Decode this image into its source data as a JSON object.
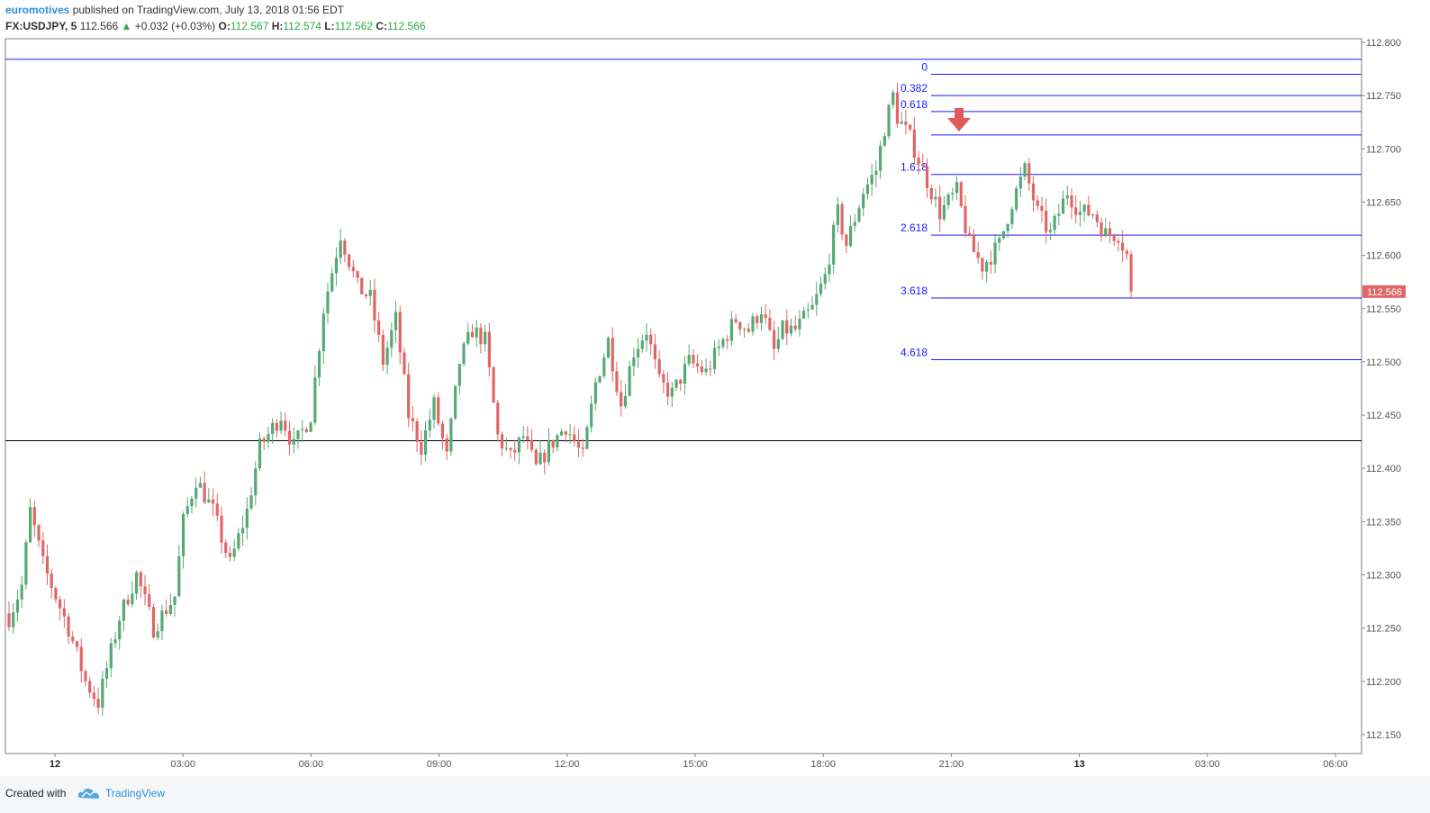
{
  "header": {
    "author": "euromotives",
    "published": "published on TradingView.com, July 13, 2018 01:56 EDT",
    "symbol": "FX:USDJPY, 5",
    "last": "112.566",
    "change": "+0.032 (+0.03%)",
    "o_label": "O:",
    "o_value": "112.567",
    "h_label": "H:",
    "h_value": "112.574",
    "l_label": "L:",
    "l_value": "112.562",
    "c_label": "C:",
    "c_value": "112.566"
  },
  "footer": {
    "created_with": "Created with",
    "brand": "TradingView"
  },
  "colors": {
    "up": "#55a974",
    "down": "#e06666",
    "fib": "#1a1aff",
    "axis": "#555555",
    "price_tag": "#e06666"
  },
  "chart_data": {
    "type": "candlestick",
    "title": "",
    "ylim": [
      112.135,
      112.81
    ],
    "y_ticks": [
      112.15,
      112.2,
      112.25,
      112.3,
      112.35,
      112.4,
      112.45,
      112.5,
      112.55,
      112.6,
      112.65,
      112.7,
      112.75,
      112.8
    ],
    "y_tick_labels": [
      "112.150",
      "112.200",
      "112.250",
      "112.300",
      "112.350",
      "112.400",
      "112.450",
      "112.500",
      "112.550",
      "112.600",
      "112.650",
      "112.700",
      "112.750",
      "112.800"
    ],
    "x_ticks": [
      "12",
      "03:00",
      "06:00",
      "09:00",
      "12:00",
      "15:00",
      "18:00",
      "21:00",
      "13",
      "03:00",
      "06:00"
    ],
    "x_bold_ticks": [
      "12",
      "13"
    ],
    "current_price_label": "112.566",
    "current_price": 112.566,
    "horizontal_lines": [
      {
        "price": 112.784,
        "color": "#1a1aff"
      },
      {
        "price": 112.426,
        "color": "#000000"
      }
    ],
    "fib_levels": [
      {
        "label": "0",
        "price": 112.77
      },
      {
        "label": "0.382",
        "price": 112.75
      },
      {
        "label": "0.618",
        "price": 112.735
      },
      {
        "label": "",
        "price": 112.713
      },
      {
        "label": "1.618",
        "price": 112.676
      },
      {
        "label": "2.618",
        "price": 112.619
      },
      {
        "label": "3.618",
        "price": 112.56
      },
      {
        "label": "4.618",
        "price": 112.502
      }
    ],
    "waypoints": [
      [
        0,
        112.26
      ],
      [
        3,
        112.29
      ],
      [
        5,
        112.36
      ],
      [
        8,
        112.31
      ],
      [
        14,
        112.25
      ],
      [
        18,
        112.2
      ],
      [
        21,
        112.18
      ],
      [
        26,
        112.26
      ],
      [
        30,
        112.3
      ],
      [
        34,
        112.25
      ],
      [
        39,
        112.28
      ],
      [
        41,
        112.35
      ],
      [
        44,
        112.39
      ],
      [
        48,
        112.36
      ],
      [
        52,
        112.31
      ],
      [
        56,
        112.36
      ],
      [
        59,
        112.42
      ],
      [
        64,
        112.45
      ],
      [
        67,
        112.42
      ],
      [
        71,
        112.45
      ],
      [
        74,
        112.55
      ],
      [
        78,
        112.62
      ],
      [
        82,
        112.57
      ],
      [
        85,
        112.56
      ],
      [
        88,
        112.5
      ],
      [
        91,
        112.54
      ],
      [
        94,
        112.45
      ],
      [
        97,
        112.42
      ],
      [
        100,
        112.46
      ],
      [
        103,
        112.41
      ],
      [
        106,
        112.5
      ],
      [
        109,
        112.53
      ],
      [
        112,
        112.52
      ],
      [
        115,
        112.43
      ],
      [
        118,
        112.41
      ],
      [
        121,
        112.43
      ],
      [
        124,
        112.4
      ],
      [
        127,
        112.42
      ],
      [
        131,
        112.44
      ],
      [
        135,
        112.41
      ],
      [
        138,
        112.48
      ],
      [
        141,
        112.52
      ],
      [
        144,
        112.46
      ],
      [
        147,
        112.51
      ],
      [
        150,
        112.53
      ],
      [
        153,
        112.48
      ],
      [
        156,
        112.47
      ],
      [
        160,
        112.5
      ],
      [
        164,
        112.49
      ],
      [
        168,
        112.52
      ],
      [
        171,
        112.54
      ],
      [
        174,
        112.53
      ],
      [
        177,
        112.55
      ],
      [
        180,
        112.51
      ],
      [
        182,
        112.53
      ],
      [
        185,
        112.53
      ],
      [
        189,
        112.55
      ],
      [
        192,
        112.58
      ],
      [
        195,
        112.64
      ],
      [
        197,
        112.61
      ],
      [
        201,
        112.66
      ],
      [
        204,
        112.68
      ],
      [
        206,
        112.72
      ],
      [
        208,
        112.75
      ],
      [
        209,
        112.73
      ],
      [
        212,
        112.71
      ],
      [
        216,
        112.67
      ],
      [
        219,
        112.64
      ],
      [
        223,
        112.66
      ],
      [
        226,
        112.61
      ],
      [
        229,
        112.59
      ],
      [
        233,
        112.61
      ],
      [
        236,
        112.65
      ],
      [
        239,
        112.68
      ],
      [
        242,
        112.64
      ],
      [
        245,
        112.62
      ],
      [
        249,
        112.66
      ],
      [
        252,
        112.64
      ],
      [
        255,
        112.64
      ],
      [
        258,
        112.62
      ],
      [
        261,
        112.62
      ],
      [
        263,
        112.6
      ],
      [
        264,
        112.566
      ]
    ]
  }
}
